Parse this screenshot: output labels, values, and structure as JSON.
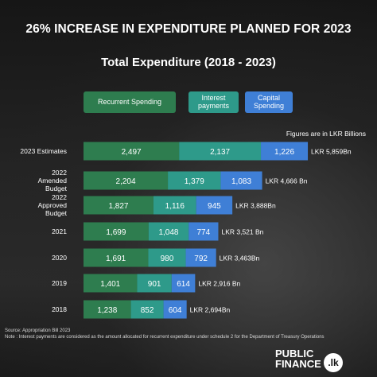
{
  "title": "26% INCREASE IN EXPENDITURE PLANNED FOR 2023",
  "chart_data": {
    "type": "bar",
    "orientation": "horizontal",
    "stacked": true,
    "title": "Total Expenditure (2018 - 2023)",
    "units_note": "Figures are in LKR Billions",
    "categories": [
      "2023 Estimates",
      "2022 Amended Budget",
      "2022 Approved Budget",
      "2021",
      "2020",
      "2019",
      "2018"
    ],
    "series": [
      {
        "name": "Recurrent Spending",
        "color": "#2e7d4f",
        "values": [
          2497,
          2204,
          1827,
          1699,
          1691,
          1401,
          1238
        ]
      },
      {
        "name": "Interest payments",
        "color": "#2e9a8a",
        "values": [
          2137,
          1379,
          1116,
          1048,
          980,
          901,
          852
        ]
      },
      {
        "name": "Capital Spending",
        "color": "#3f7fd6",
        "values": [
          1226,
          1083,
          945,
          774,
          792,
          614,
          604
        ]
      }
    ],
    "value_labels": [
      [
        "2,497",
        "2,137",
        "1,226"
      ],
      [
        "2,204",
        "1,379",
        "1,083"
      ],
      [
        "1,827",
        "1,116",
        "945"
      ],
      [
        "1,699",
        "1,048",
        "774"
      ],
      [
        "1,691",
        "980",
        "792"
      ],
      [
        "1,401",
        "901",
        "614"
      ],
      [
        "1,238",
        "852",
        "604"
      ]
    ],
    "totals": [
      "LKR 5,859Bn",
      "LKR 4,666 Bn",
      "LKR 3,888Bn",
      "LKR 3,521 Bn",
      "LKR 3,463Bn",
      "LKR 2,916 Bn",
      "LKR 2,694Bn"
    ],
    "legend_position": "top",
    "grid": false
  },
  "footnotes": {
    "source": "Source: Appropriation Bill 2023",
    "note": "Note : Interest payments are considered as the amount allocated for recurrent expenditure under schedule 2 for the Department of Treasury Operations"
  },
  "brand": {
    "line1": "PUBLIC",
    "line2": "FINANCE",
    "badge": ".lk"
  }
}
